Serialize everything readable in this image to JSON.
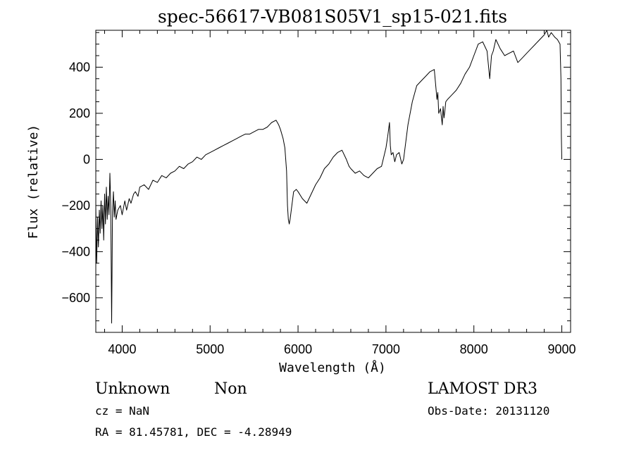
{
  "chart_data": {
    "type": "line",
    "title": "spec-56617-VB081S05V1_sp15-021.fits",
    "xlabel": "Wavelength (Å)",
    "ylabel": "Flux (relative)",
    "xlim": [
      3700,
      9100
    ],
    "ylim": [
      -750,
      560
    ],
    "grid": false,
    "x_ticks": [
      4000,
      5000,
      6000,
      7000,
      8000,
      9000
    ],
    "x_tick_labels": [
      "4000",
      "5000",
      "6000",
      "7000",
      "8000",
      "9000"
    ],
    "y_ticks": [
      -600,
      -400,
      -200,
      0,
      200,
      400
    ],
    "y_tick_labels": [
      "−600",
      "−400",
      "−200",
      "0",
      "200",
      "400"
    ],
    "series": [
      {
        "x": [
          3700,
          3710,
          3720,
          3730,
          3740,
          3750,
          3760,
          3770,
          3780,
          3790,
          3800,
          3810,
          3820,
          3830,
          3840,
          3850,
          3860,
          3870,
          3880,
          3890,
          3900,
          3910,
          3920,
          3930,
          3950,
          3980,
          4000,
          4030,
          4050,
          4080,
          4100,
          4130,
          4150,
          4180,
          4200,
          4250,
          4300,
          4350,
          4400,
          4450,
          4500,
          4550,
          4600,
          4650,
          4700,
          4750,
          4800,
          4850,
          4900,
          4950,
          5000,
          5050,
          5100,
          5150,
          5200,
          5250,
          5300,
          5350,
          5400,
          5450,
          5500,
          5550,
          5600,
          5650,
          5700,
          5750,
          5780,
          5800,
          5830,
          5850,
          5870,
          5880,
          5890,
          5900,
          5910,
          5930,
          5950,
          5980,
          6000,
          6050,
          6100,
          6150,
          6200,
          6250,
          6300,
          6350,
          6400,
          6450,
          6500,
          6550,
          6580,
          6600,
          6650,
          6700,
          6750,
          6800,
          6850,
          6900,
          6950,
          7000,
          7020,
          7040,
          7050,
          7060,
          7080,
          7100,
          7120,
          7150,
          7180,
          7200,
          7250,
          7300,
          7350,
          7400,
          7450,
          7500,
          7550,
          7580,
          7590,
          7600,
          7620,
          7640,
          7650,
          7660,
          7670,
          7680,
          7700,
          7750,
          7800,
          7850,
          7900,
          7950,
          8000,
          8050,
          8100,
          8150,
          8180,
          8200,
          8220,
          8250,
          8300,
          8350,
          8400,
          8450,
          8500,
          8550,
          8600,
          8650,
          8700,
          8750,
          8800,
          8830,
          8850,
          8880,
          8900,
          8920,
          8950,
          8980,
          8990,
          8995,
          9000
        ],
        "y": [
          -200,
          -450,
          -250,
          -380,
          -220,
          -320,
          -180,
          -300,
          -200,
          -350,
          -150,
          -280,
          -120,
          -260,
          -160,
          -240,
          -60,
          -200,
          -710,
          -230,
          -140,
          -250,
          -180,
          -260,
          -220,
          -200,
          -240,
          -180,
          -220,
          -170,
          -190,
          -150,
          -140,
          -160,
          -120,
          -110,
          -130,
          -90,
          -100,
          -70,
          -80,
          -60,
          -50,
          -30,
          -40,
          -20,
          -10,
          10,
          0,
          20,
          30,
          40,
          50,
          60,
          70,
          80,
          90,
          100,
          110,
          110,
          120,
          130,
          130,
          140,
          160,
          170,
          150,
          130,
          90,
          50,
          -50,
          -200,
          -260,
          -280,
          -260,
          -200,
          -140,
          -130,
          -140,
          -170,
          -190,
          -150,
          -110,
          -80,
          -40,
          -20,
          10,
          30,
          40,
          0,
          -30,
          -40,
          -60,
          -50,
          -70,
          -80,
          -60,
          -40,
          -30,
          50,
          100,
          160,
          60,
          20,
          30,
          -10,
          20,
          30,
          -20,
          0,
          150,
          250,
          320,
          340,
          360,
          380,
          390,
          260,
          290,
          200,
          220,
          150,
          230,
          180,
          210,
          250,
          260,
          280,
          300,
          330,
          370,
          400,
          450,
          500,
          510,
          470,
          350,
          450,
          470,
          520,
          480,
          450,
          460,
          470,
          420,
          440,
          460,
          480,
          500,
          520,
          540,
          560,
          530,
          550,
          540,
          530,
          520,
          500,
          350,
          100,
          0
        ]
      }
    ],
    "info": {
      "left_line1_a": "Unknown",
      "left_line1_b": "Non",
      "left_line2": "cz = NaN",
      "left_line3": "RA =  81.45781, DEC =  -4.28949",
      "right_line1": "LAMOST DR3",
      "right_line2": "Obs-Date: 20131120"
    }
  }
}
